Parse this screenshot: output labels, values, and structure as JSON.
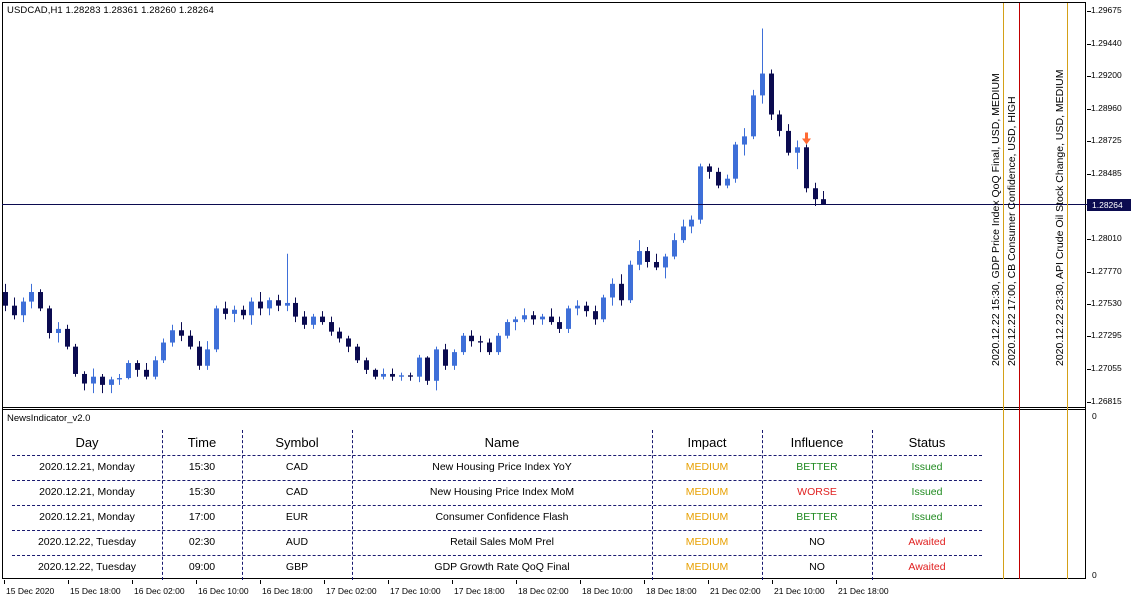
{
  "chart_header": {
    "symbol_info": "USDCAD,H1  1.28283 1.28361 1.28260 1.28264"
  },
  "price_axis": {
    "labels": [
      "1.29675",
      "1.29440",
      "1.29200",
      "1.28960",
      "1.28725",
      "1.28485",
      "1.28010",
      "1.27770",
      "1.27530",
      "1.27295",
      "1.27055",
      "1.26815"
    ],
    "current_price": "1.28264"
  },
  "subwindow": {
    "title": "NewsIndicator_v2.0",
    "axis_top": "0",
    "axis_bottom": "0"
  },
  "time_axis": [
    "15 Dec 2020",
    "15 Dec 18:00",
    "16 Dec 02:00",
    "16 Dec 10:00",
    "16 Dec 18:00",
    "17 Dec 02:00",
    "17 Dec 10:00",
    "17 Dec 18:00",
    "18 Dec 02:00",
    "18 Dec 10:00",
    "18 Dec 18:00",
    "21 Dec 02:00",
    "21 Dec 10:00",
    "21 Dec 18:00"
  ],
  "events": [
    {
      "text": "2020.12.22 15:30, GDP Price Index QoQ Final, USD, MEDIUM",
      "color": "#d4a017"
    },
    {
      "text": "2020.12.22 17:00, CB Consumer Confidence, USD, HIGH",
      "color": "#c00000"
    },
    {
      "text": "2020.12.22 23:30, API Crude Oil Stock Change, USD, MEDIUM",
      "color": "#d4a017"
    }
  ],
  "news_table": {
    "headers": [
      "Day",
      "Time",
      "Symbol",
      "Name",
      "Impact",
      "Influence",
      "Status"
    ],
    "rows": [
      {
        "day": "2020.12.21, Monday",
        "time": "15:30",
        "symbol": "CAD",
        "name": "New Housing Price Index YoY",
        "impact": "MEDIUM",
        "influence": "BETTER",
        "status": "Issued"
      },
      {
        "day": "2020.12.21, Monday",
        "time": "15:30",
        "symbol": "CAD",
        "name": "New Housing Price Index MoM",
        "impact": "MEDIUM",
        "influence": "WORSE",
        "status": "Issued"
      },
      {
        "day": "2020.12.21, Monday",
        "time": "17:00",
        "symbol": "EUR",
        "name": "Consumer Confidence Flash",
        "impact": "MEDIUM",
        "influence": "BETTER",
        "status": "Issued"
      },
      {
        "day": "2020.12.22, Tuesday",
        "time": "02:30",
        "symbol": "AUD",
        "name": "Retail Sales MoM Prel",
        "impact": "MEDIUM",
        "influence": "NO",
        "status": "Awaited"
      },
      {
        "day": "2020.12.22, Tuesday",
        "time": "09:00",
        "symbol": "GBP",
        "name": "GDP Growth Rate QoQ Final",
        "impact": "MEDIUM",
        "influence": "NO",
        "status": "Awaited"
      }
    ]
  },
  "colors": {
    "bull": "#3e6fd8",
    "bear": "#0b0b50",
    "medium": "#e8a000",
    "high": "#c00000",
    "better": "#1f8a1f",
    "worse": "#e02020",
    "no": "#000000",
    "issued": "#1f8a1f",
    "awaited": "#e02020",
    "signal_arrow": "#ff6a33"
  },
  "chart_data": {
    "type": "candlestick",
    "symbol": "USDCAD",
    "timeframe": "H1",
    "ylim": [
      1.268,
      1.297
    ],
    "current_price": 1.28264,
    "candles": [
      [
        1.2762,
        1.2768,
        1.2748,
        1.2752
      ],
      [
        1.2752,
        1.2758,
        1.2742,
        1.2745
      ],
      [
        1.2745,
        1.2758,
        1.274,
        1.2755
      ],
      [
        1.2755,
        1.2768,
        1.275,
        1.2762
      ],
      [
        1.2762,
        1.2764,
        1.2748,
        1.275
      ],
      [
        1.275,
        1.2752,
        1.2728,
        1.2732
      ],
      [
        1.2732,
        1.274,
        1.2725,
        1.2735
      ],
      [
        1.2735,
        1.2738,
        1.272,
        1.2722
      ],
      [
        1.2722,
        1.2724,
        1.27,
        1.2702
      ],
      [
        1.2702,
        1.2704,
        1.269,
        1.2695
      ],
      [
        1.2695,
        1.2706,
        1.2688,
        1.27
      ],
      [
        1.27,
        1.2702,
        1.2688,
        1.2694
      ],
      [
        1.2694,
        1.27,
        1.2688,
        1.2698
      ],
      [
        1.2698,
        1.2702,
        1.2694,
        1.2699
      ],
      [
        1.2699,
        1.2712,
        1.2698,
        1.271
      ],
      [
        1.271,
        1.2712,
        1.27,
        1.2705
      ],
      [
        1.2705,
        1.271,
        1.2698,
        1.27
      ],
      [
        1.27,
        1.2715,
        1.2698,
        1.2712
      ],
      [
        1.2712,
        1.2728,
        1.271,
        1.2725
      ],
      [
        1.2725,
        1.2738,
        1.2722,
        1.2734
      ],
      [
        1.2734,
        1.274,
        1.2726,
        1.273
      ],
      [
        1.273,
        1.2734,
        1.272,
        1.2722
      ],
      [
        1.2722,
        1.2726,
        1.2705,
        1.2708
      ],
      [
        1.2708,
        1.2726,
        1.2705,
        1.272
      ],
      [
        1.272,
        1.2752,
        1.2718,
        1.275
      ],
      [
        1.275,
        1.2755,
        1.2742,
        1.2746
      ],
      [
        1.2746,
        1.2752,
        1.274,
        1.2749
      ],
      [
        1.2749,
        1.2752,
        1.2742,
        1.2745
      ],
      [
        1.2745,
        1.2758,
        1.2738,
        1.2755
      ],
      [
        1.2755,
        1.2762,
        1.2745,
        1.275
      ],
      [
        1.275,
        1.2758,
        1.2745,
        1.2756
      ],
      [
        1.2756,
        1.276,
        1.2748,
        1.2752
      ],
      [
        1.2752,
        1.279,
        1.2748,
        1.2754
      ],
      [
        1.2754,
        1.2758,
        1.274,
        1.2744
      ],
      [
        1.2744,
        1.2748,
        1.2735,
        1.2738
      ],
      [
        1.2738,
        1.2746,
        1.2735,
        1.2744
      ],
      [
        1.2744,
        1.2748,
        1.2738,
        1.274
      ],
      [
        1.274,
        1.2744,
        1.273,
        1.2733
      ],
      [
        1.2733,
        1.2736,
        1.2725,
        1.2728
      ],
      [
        1.2728,
        1.273,
        1.2718,
        1.2722
      ],
      [
        1.2722,
        1.2724,
        1.271,
        1.2712
      ],
      [
        1.2712,
        1.2714,
        1.2702,
        1.2705
      ],
      [
        1.2705,
        1.2706,
        1.2698,
        1.27
      ],
      [
        1.27,
        1.2706,
        1.2698,
        1.2702
      ],
      [
        1.2702,
        1.2706,
        1.2697,
        1.27
      ],
      [
        1.27,
        1.2703,
        1.2697,
        1.2701
      ],
      [
        1.2701,
        1.2703,
        1.2697,
        1.27
      ],
      [
        1.27,
        1.2716,
        1.2696,
        1.2714
      ],
      [
        1.2714,
        1.2715,
        1.2694,
        1.2697
      ],
      [
        1.2697,
        1.2722,
        1.269,
        1.272
      ],
      [
        1.272,
        1.2724,
        1.2705,
        1.2708
      ],
      [
        1.2708,
        1.272,
        1.2705,
        1.2718
      ],
      [
        1.2718,
        1.2732,
        1.2716,
        1.273
      ],
      [
        1.273,
        1.2734,
        1.2722,
        1.2726
      ],
      [
        1.2726,
        1.273,
        1.2718,
        1.2725
      ],
      [
        1.2725,
        1.2728,
        1.2716,
        1.2718
      ],
      [
        1.2718,
        1.2732,
        1.2716,
        1.273
      ],
      [
        1.273,
        1.2742,
        1.2728,
        1.274
      ],
      [
        1.274,
        1.2744,
        1.2734,
        1.2742
      ],
      [
        1.2742,
        1.275,
        1.274,
        1.2745
      ],
      [
        1.2745,
        1.2748,
        1.2738,
        1.2742
      ],
      [
        1.2742,
        1.2746,
        1.2738,
        1.2744
      ],
      [
        1.2744,
        1.275,
        1.2738,
        1.274
      ],
      [
        1.274,
        1.2744,
        1.2732,
        1.2735
      ],
      [
        1.2735,
        1.2752,
        1.2732,
        1.275
      ],
      [
        1.275,
        1.2756,
        1.2745,
        1.2752
      ],
      [
        1.2752,
        1.2755,
        1.2744,
        1.2748
      ],
      [
        1.2748,
        1.2752,
        1.2738,
        1.2742
      ],
      [
        1.2742,
        1.276,
        1.274,
        1.2758
      ],
      [
        1.2758,
        1.2772,
        1.2752,
        1.2768
      ],
      [
        1.2768,
        1.2775,
        1.2752,
        1.2756
      ],
      [
        1.2756,
        1.2785,
        1.2754,
        1.2782
      ],
      [
        1.2782,
        1.28,
        1.2778,
        1.2792
      ],
      [
        1.2792,
        1.2795,
        1.278,
        1.2784
      ],
      [
        1.2784,
        1.279,
        1.2778,
        1.278
      ],
      [
        1.278,
        1.279,
        1.2772,
        1.2788
      ],
      [
        1.2788,
        1.2805,
        1.2786,
        1.28
      ],
      [
        1.28,
        1.2815,
        1.2798,
        1.281
      ],
      [
        1.281,
        1.2818,
        1.2805,
        1.2815
      ],
      [
        1.2815,
        1.2856,
        1.2812,
        1.2854
      ],
      [
        1.2854,
        1.2856,
        1.2845,
        1.285
      ],
      [
        1.285,
        1.2853,
        1.2838,
        1.284
      ],
      [
        1.284,
        1.2848,
        1.2838,
        1.2845
      ],
      [
        1.2845,
        1.2872,
        1.2842,
        1.287
      ],
      [
        1.287,
        1.2882,
        1.2862,
        1.2876
      ],
      [
        1.2876,
        1.291,
        1.2874,
        1.2906
      ],
      [
        1.2906,
        1.2955,
        1.29,
        1.2922
      ],
      [
        1.2922,
        1.2925,
        1.2888,
        1.2892
      ],
      [
        1.2892,
        1.2895,
        1.2876,
        1.288
      ],
      [
        1.288,
        1.2885,
        1.2862,
        1.2864
      ],
      [
        1.2864,
        1.2873,
        1.2852,
        1.2868
      ],
      [
        1.2868,
        1.287,
        1.2835,
        1.2838
      ],
      [
        1.2838,
        1.2842,
        1.2825,
        1.283
      ],
      [
        1.283,
        1.2836,
        1.2826,
        1.2826
      ]
    ]
  }
}
